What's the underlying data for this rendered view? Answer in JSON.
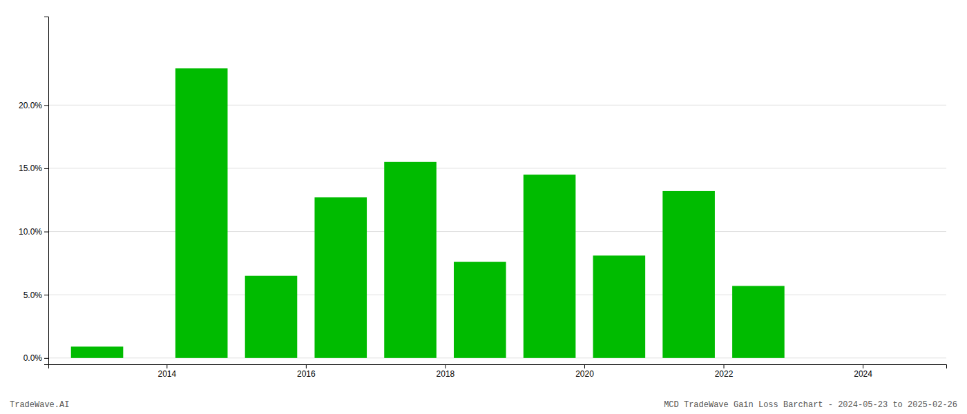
{
  "chart_data": {
    "type": "bar",
    "x": [
      2013,
      2014.5,
      2015.5,
      2016.5,
      2017.5,
      2018.5,
      2019.5,
      2020.5,
      2021.5,
      2022.5
    ],
    "values": [
      0.009,
      0.229,
      0.065,
      0.127,
      0.155,
      0.076,
      0.145,
      0.081,
      0.132,
      0.057
    ],
    "color": "#00bb00",
    "xlim": [
      2012.3,
      2025.2
    ],
    "xticks": [
      2014,
      2016,
      2018,
      2020,
      2022,
      2024
    ],
    "ylim": [
      -0.005,
      0.27
    ],
    "yticks": [
      {
        "value": 0.0,
        "label": "0.0%"
      },
      {
        "value": 0.05,
        "label": "5.0%"
      },
      {
        "value": 0.1,
        "label": "10.0%"
      },
      {
        "value": 0.15,
        "label": "15.0%"
      },
      {
        "value": 0.2,
        "label": "20.0%"
      }
    ],
    "grid": true,
    "annotations": [
      "TradeWave.AI",
      "MCD TradeWave Gain Loss Barchart - 2024-05-23 to 2025-02-26"
    ]
  }
}
